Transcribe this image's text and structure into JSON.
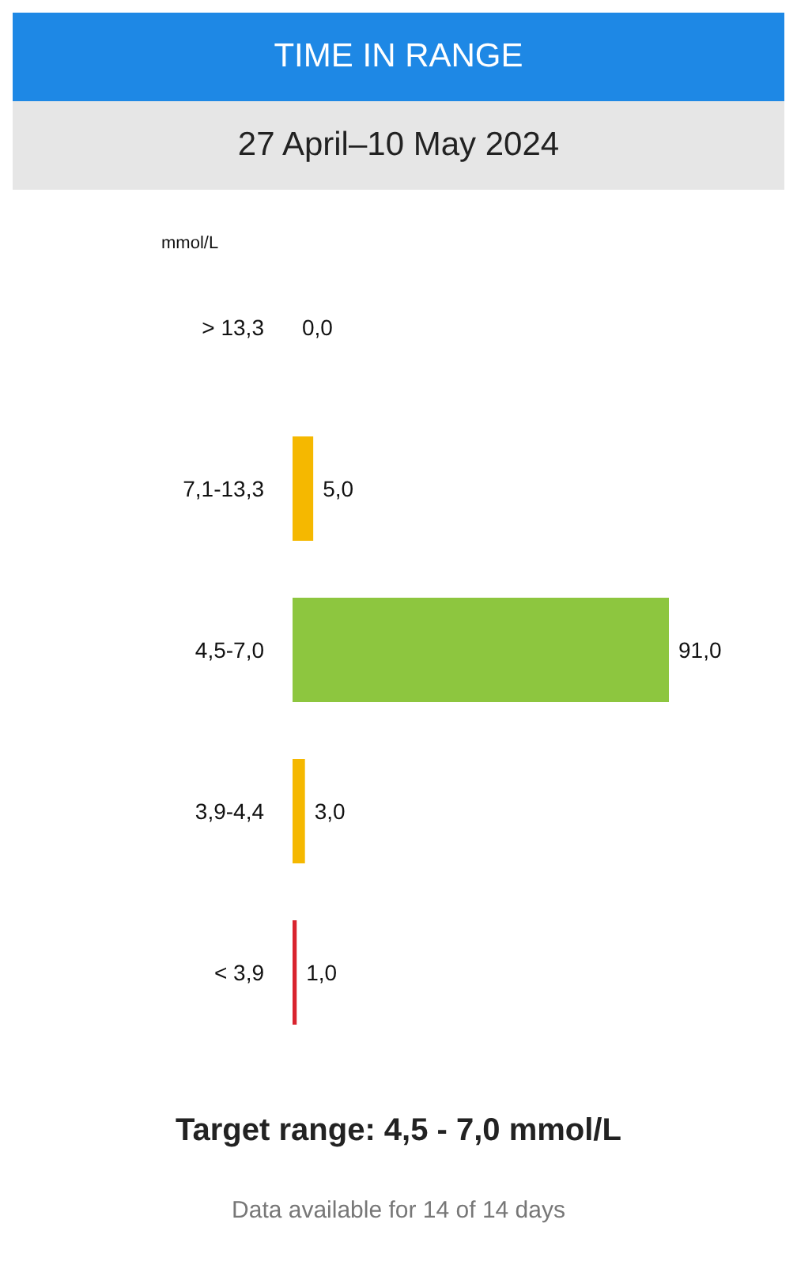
{
  "chart_data": {
    "type": "bar",
    "orientation": "horizontal",
    "title": "TIME IN RANGE",
    "subtitle": "27 April–10 May 2024",
    "ylabel": "mmol/L",
    "categories": [
      "> 13,3",
      "7,1-13,3",
      "4,5-7,0",
      "3,9-4,4",
      "< 3,9"
    ],
    "values": [
      0,
      5,
      91,
      3,
      1
    ],
    "value_labels": [
      "0,0",
      "5,0",
      "91,0",
      "3,0",
      "1,0"
    ],
    "colors": [
      "#f5b800",
      "#f5b800",
      "#8dc63f",
      "#f5b800",
      "#d9232e"
    ],
    "annotations": [
      "Target range: 4,5 - 7,0 mmol/L",
      "Data available for 14 of 14 days"
    ],
    "grid": false,
    "legend": false
  }
}
